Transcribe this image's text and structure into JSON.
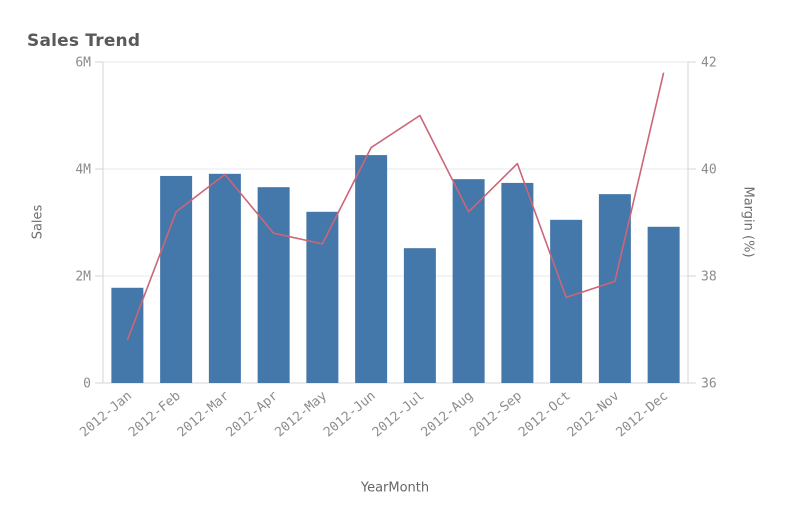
{
  "title": "Sales Trend",
  "chart_data": {
    "type": "combo",
    "title": "Sales Trend",
    "xlabel": "YearMonth",
    "ylabel_left": "Sales",
    "ylabel_right": "Margin (%)",
    "categories": [
      "2012-Jan",
      "2012-Feb",
      "2012-Mar",
      "2012-Apr",
      "2012-May",
      "2012-Jun",
      "2012-Jul",
      "2012-Aug",
      "2012-Sep",
      "2012-Oct",
      "2012-Nov",
      "2012-Dec"
    ],
    "series": [
      {
        "name": "Sales",
        "type": "bar",
        "axis": "left",
        "unit": "M",
        "color": "#4477aa",
        "values": [
          1.78,
          3.87,
          3.91,
          3.66,
          3.2,
          4.26,
          2.52,
          3.81,
          3.74,
          3.05,
          3.53,
          2.92
        ]
      },
      {
        "name": "Margin (%)",
        "type": "line",
        "axis": "right",
        "unit": "%",
        "color": "#cc6677",
        "values": [
          36.8,
          39.2,
          39.9,
          38.8,
          38.6,
          40.4,
          41.0,
          39.2,
          40.1,
          37.6,
          37.9,
          41.8
        ]
      }
    ],
    "ylim_left": [
      0,
      6
    ],
    "ylim_right": [
      36,
      42
    ],
    "yticks_left": [
      "0",
      "2M",
      "4M",
      "6M"
    ],
    "yticks_right": [
      "36",
      "38",
      "40",
      "42"
    ],
    "grid": true,
    "legend": "none"
  },
  "colors": {
    "bar": "#4477aa",
    "line": "#cc6677",
    "grid": "#e8e8e8",
    "axis_line": "#d4d4d4",
    "tick_text": "#8c8c8c",
    "background": "#ffffff"
  }
}
